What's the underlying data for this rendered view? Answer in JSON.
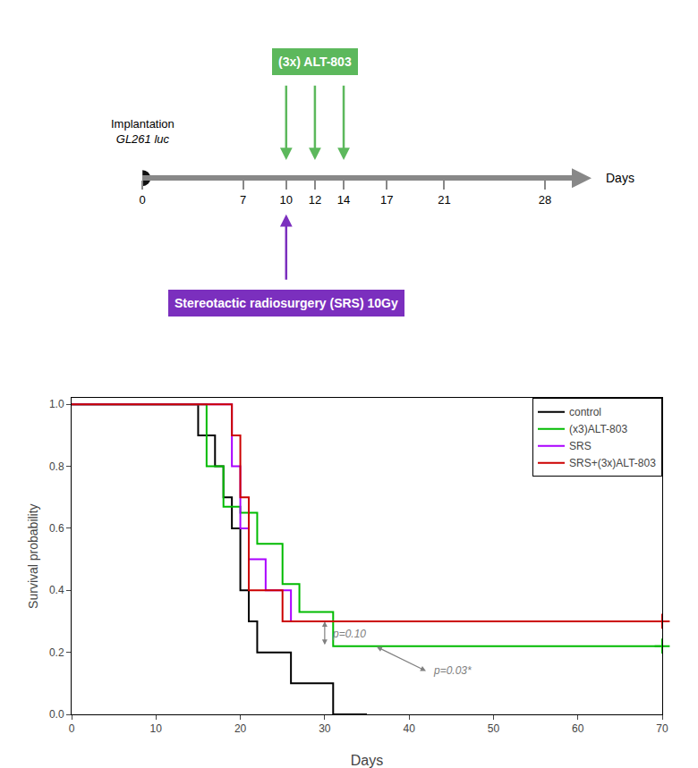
{
  "chart_data": [
    {
      "type": "timeline",
      "xlabel": "Days",
      "xlim": [
        0,
        30
      ],
      "xticks": [
        0,
        7,
        10,
        12,
        14,
        17,
        21,
        28
      ],
      "color": "#888888",
      "annotations": [
        {
          "text": [
            "Implantation",
            "GL261 luc"
          ],
          "x": [
            0
          ],
          "marker": "circle",
          "color": "#111111"
        },
        {
          "text": [
            "(3x) ALT-803"
          ],
          "x": [
            10,
            12,
            14
          ],
          "color": "#5cb85c"
        },
        {
          "text": [
            "Stereotactic radiosurgery (SRS) 10Gy"
          ],
          "x": [
            10
          ],
          "color": "#7b2fbe"
        }
      ]
    },
    {
      "type": "line",
      "line_style": "step",
      "xlabel": "Days",
      "ylabel": "Survival probability",
      "xlim": [
        0,
        70
      ],
      "ylim": [
        0.0,
        1.02
      ],
      "xticks": [
        0,
        10,
        20,
        30,
        40,
        50,
        60,
        70
      ],
      "yticks": [
        {
          "value": 0.0,
          "label": "0.0"
        },
        0.2,
        0.4,
        0.6,
        0.8,
        {
          "value": 1.0,
          "label": "1.0"
        }
      ],
      "grid": false,
      "legend": "upper right",
      "series": [
        {
          "name": "control",
          "color": "#000000",
          "x": [
            0,
            15,
            17,
            18,
            19,
            20,
            21,
            22,
            26,
            27,
            30,
            31,
            35
          ],
          "values": [
            1.0,
            0.9,
            0.8,
            0.7,
            0.6,
            0.4,
            0.3,
            0.2,
            0.1,
            0.1,
            0.1,
            0.0,
            0.0
          ]
        },
        {
          "name": "(x3)ALT-803",
          "color": "#00bb00",
          "marker": "plus",
          "x": [
            0,
            16,
            18,
            20,
            22,
            25,
            27,
            31,
            35,
            70
          ],
          "values": [
            1.0,
            0.8,
            0.67,
            0.65,
            0.55,
            0.42,
            0.33,
            0.22,
            0.22,
            0.22
          ]
        },
        {
          "name": "SRS",
          "color": "#aa00ff",
          "x": [
            0,
            19,
            20,
            21,
            23,
            26,
            28,
            35
          ],
          "values": [
            1.0,
            0.8,
            0.6,
            0.5,
            0.4,
            0.3,
            0.3,
            0.3
          ]
        },
        {
          "name": "SRS+(3x)ALT-803",
          "color": "#cc0000",
          "marker": "plus",
          "x": [
            0,
            19,
            20,
            21,
            25,
            28,
            35,
            70
          ],
          "values": [
            1.0,
            0.9,
            0.7,
            0.4,
            0.3,
            0.3,
            0.3,
            0.3
          ]
        }
      ],
      "annotations": [
        {
          "text": "p=0.10",
          "x": [
            30,
            30
          ],
          "y": [
            0.22,
            0.3
          ]
        },
        {
          "text": "p=0.03*",
          "x": [
            36,
            42
          ],
          "y": [
            0.22,
            0.14
          ]
        }
      ]
    }
  ]
}
